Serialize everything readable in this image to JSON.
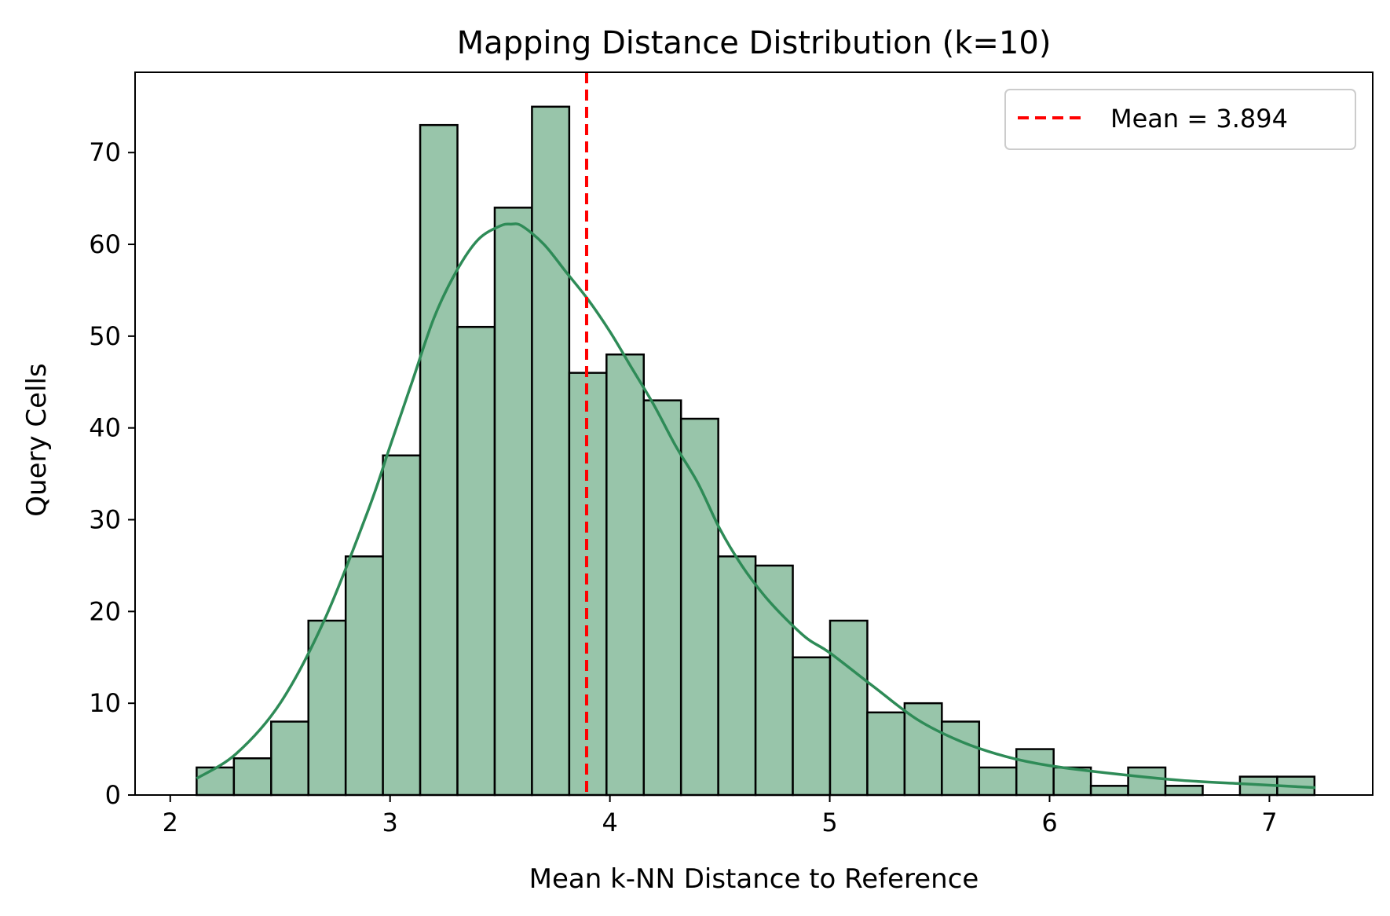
{
  "chart_data": {
    "type": "bar",
    "subtype": "histogram",
    "title": "Mapping Distance Distribution (k=10)",
    "xlabel": "Mean k-NN Distance to Reference",
    "ylabel": "Query Cells",
    "xlim": [
      1.84,
      7.47
    ],
    "ylim": [
      0,
      78.75
    ],
    "xticks": [
      2,
      3,
      4,
      5,
      6,
      7
    ],
    "yticks": [
      0,
      10,
      20,
      30,
      40,
      50,
      60,
      70
    ],
    "bin_start": 2.12,
    "bin_width": 0.1695,
    "counts": [
      3,
      4,
      8,
      19,
      26,
      37,
      73,
      51,
      64,
      75,
      46,
      48,
      43,
      41,
      26,
      25,
      15,
      19,
      9,
      10,
      8,
      3,
      5,
      3,
      1,
      3,
      1,
      0,
      2,
      2
    ],
    "bar_color": "#98c5aa",
    "bar_edge_color": "#000000",
    "kde": {
      "color": "#2e8b57",
      "x": [
        2.12,
        2.3,
        2.5,
        2.7,
        2.9,
        3.0,
        3.1,
        3.2,
        3.3,
        3.4,
        3.5,
        3.55,
        3.6,
        3.7,
        3.8,
        3.9,
        4.0,
        4.1,
        4.2,
        4.3,
        4.4,
        4.5,
        4.6,
        4.7,
        4.8,
        4.9,
        5.0,
        5.2,
        5.4,
        5.6,
        5.8,
        6.0,
        6.3,
        6.6,
        6.9,
        7.21
      ],
      "y": [
        1.8,
        4.5,
        10,
        19,
        31,
        38,
        45,
        52,
        57,
        60.5,
        62,
        62.2,
        62,
        60,
        57,
        54,
        50.5,
        46.5,
        42.5,
        38,
        34,
        29,
        25,
        21.8,
        19.2,
        17,
        15.5,
        11.8,
        8.2,
        5.8,
        4.2,
        3.2,
        2.3,
        1.6,
        1.2,
        0.8
      ]
    },
    "mean_line": {
      "x": 3.894,
      "color": "#ff0000",
      "label": "Mean = 3.894"
    },
    "legend_position": "top-right",
    "grid": false
  }
}
